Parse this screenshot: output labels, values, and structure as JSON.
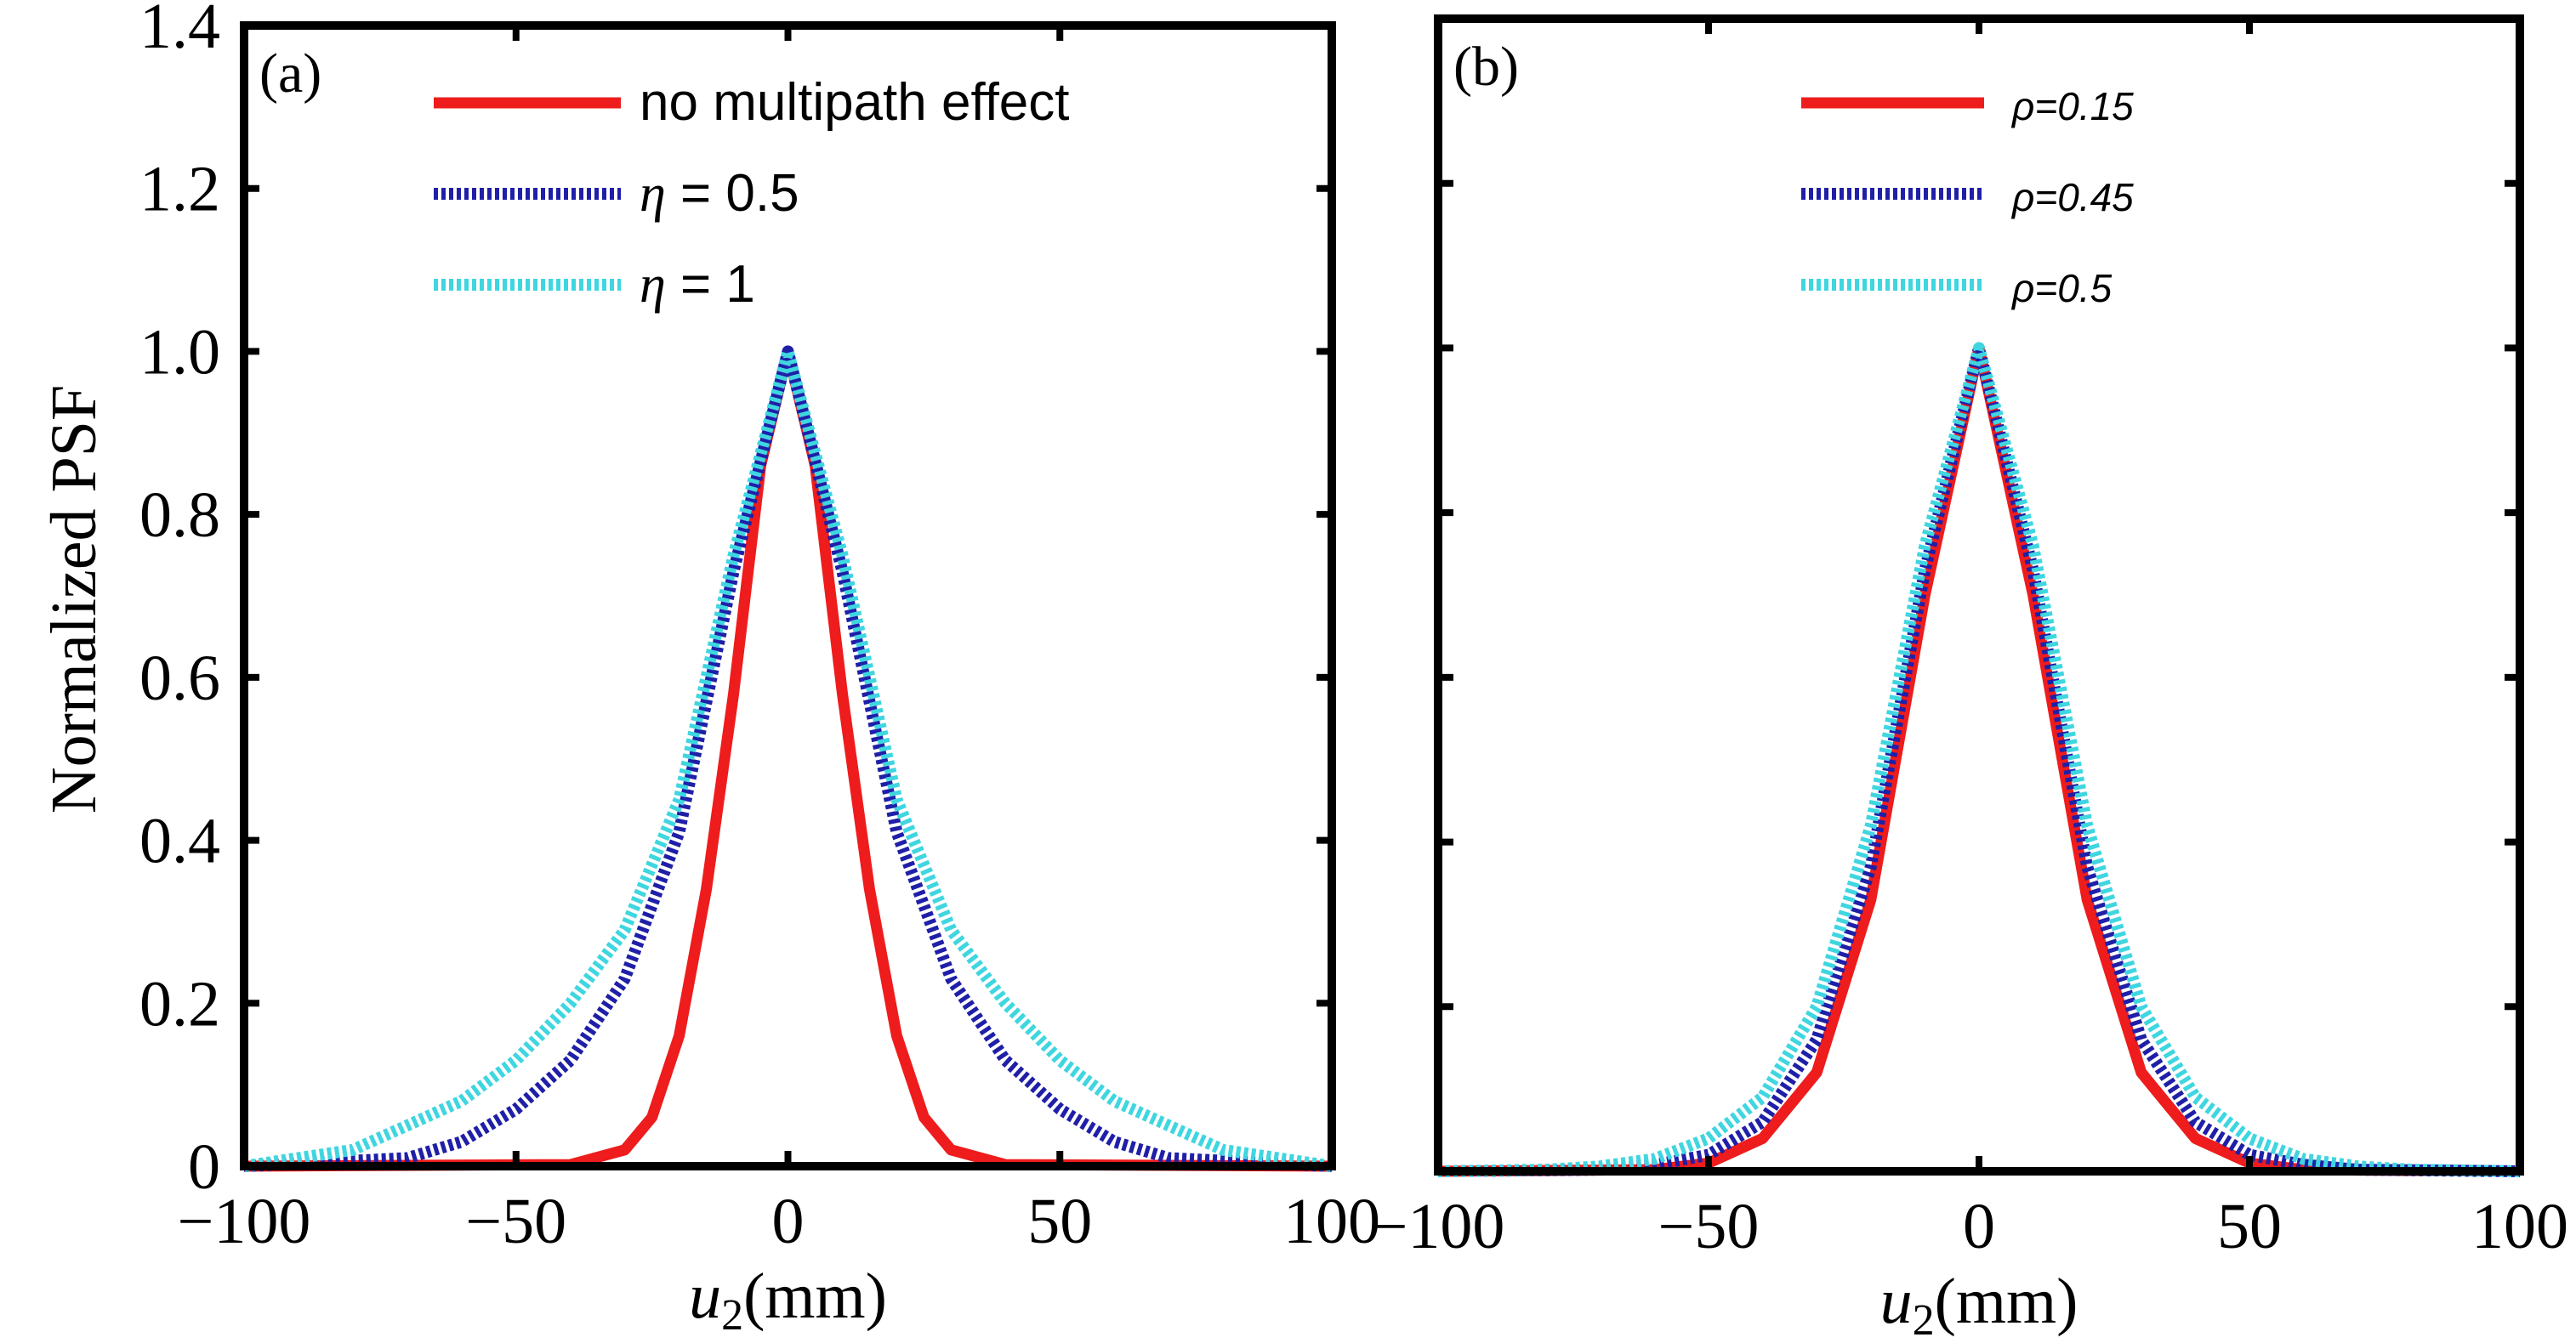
{
  "chart_data": [
    {
      "type": "line",
      "panel_label": "(a)",
      "xlabel_var": "u",
      "xlabel_sub": "2",
      "xlabel_unit": "(mm)",
      "ylabel": "Normalized PSF",
      "xlim": [
        -100,
        100
      ],
      "ylim": [
        0,
        1.4
      ],
      "xticks": [
        -100,
        -50,
        0,
        50,
        100
      ],
      "xtick_labels": [
        "−100",
        "−50",
        "0",
        "50",
        "100"
      ],
      "yticks": [
        0,
        0.2,
        0.4,
        0.6,
        0.8,
        1.0,
        1.2,
        1.4
      ],
      "ytick_labels": [
        "0",
        "0.2",
        "0.4",
        "0.6",
        "0.8",
        "1.0",
        "1.2",
        "1.4"
      ],
      "legend_position": "top",
      "series": [
        {
          "name": "no multipath effect",
          "legend_label": "no multipath effect",
          "color": "#ee1c1c",
          "style": "solid",
          "x": [
            -100,
            -40,
            -30,
            -25,
            -20,
            -15,
            -10,
            -5,
            0,
            5,
            10,
            15,
            20,
            25,
            30,
            40,
            100
          ],
          "y": [
            0,
            0.002,
            0.02,
            0.06,
            0.16,
            0.34,
            0.58,
            0.86,
            1.0,
            0.86,
            0.58,
            0.34,
            0.16,
            0.06,
            0.02,
            0.002,
            0
          ]
        },
        {
          "name": "eta = 0.5",
          "legend_symbol": "η",
          "legend_label": " = 0.5",
          "color": "#1f1fa8",
          "style": "dotted",
          "x": [
            -100,
            -70,
            -60,
            -50,
            -40,
            -30,
            -20,
            -10,
            0,
            10,
            20,
            30,
            40,
            50,
            60,
            70,
            100
          ],
          "y": [
            0,
            0.01,
            0.03,
            0.07,
            0.13,
            0.23,
            0.41,
            0.73,
            1.0,
            0.73,
            0.41,
            0.23,
            0.13,
            0.07,
            0.03,
            0.01,
            0
          ],
          "x_note": "approximate"
        },
        {
          "name": "eta = 1",
          "legend_symbol": "η",
          "legend_label": " = 1",
          "color": "#3fd6e0",
          "style": "dotted",
          "x": [
            -100,
            -90,
            -80,
            -70,
            -60,
            -50,
            -40,
            -30,
            -20,
            -10,
            0,
            10,
            20,
            30,
            40,
            50,
            60,
            70,
            80,
            90,
            100
          ],
          "y": [
            0,
            0.01,
            0.02,
            0.05,
            0.08,
            0.13,
            0.2,
            0.29,
            0.45,
            0.75,
            1.0,
            0.75,
            0.45,
            0.29,
            0.2,
            0.13,
            0.08,
            0.05,
            0.02,
            0.01,
            0
          ]
        }
      ]
    },
    {
      "type": "line",
      "panel_label": "(b)",
      "xlabel_var": "u",
      "xlabel_sub": "2",
      "xlabel_unit": "(mm)",
      "xlim": [
        -100,
        100
      ],
      "ylim": [
        0,
        1.4
      ],
      "xticks": [
        -100,
        -50,
        0,
        50,
        100
      ],
      "xtick_labels": [
        "−100",
        "−50",
        "0",
        "50",
        "100"
      ],
      "yticks": [
        0,
        0.2,
        0.4,
        0.6,
        0.8,
        1.0,
        1.2,
        1.4
      ],
      "legend_position": "top",
      "series": [
        {
          "name": "rho=0.15",
          "legend_label": "ρ=0.15",
          "color": "#ee1c1c",
          "style": "solid",
          "x": [
            -100,
            -60,
            -50,
            -40,
            -30,
            -20,
            -10,
            0,
            10,
            20,
            30,
            40,
            50,
            60,
            100
          ],
          "y": [
            0,
            0.002,
            0.01,
            0.04,
            0.12,
            0.33,
            0.7,
            1.0,
            0.7,
            0.33,
            0.12,
            0.04,
            0.01,
            0.002,
            0
          ]
        },
        {
          "name": "rho=0.45",
          "legend_label": "ρ=0.45",
          "color": "#1f1fa8",
          "style": "dotted",
          "x": [
            -100,
            -70,
            -60,
            -50,
            -40,
            -30,
            -20,
            -10,
            0,
            10,
            20,
            30,
            40,
            50,
            60,
            70,
            100
          ],
          "y": [
            0,
            0.002,
            0.008,
            0.02,
            0.06,
            0.16,
            0.37,
            0.73,
            1.0,
            0.73,
            0.37,
            0.16,
            0.06,
            0.02,
            0.008,
            0.002,
            0
          ]
        },
        {
          "name": "rho=0.5",
          "legend_label": "ρ=0.5",
          "color": "#3fd6e0",
          "style": "dotted",
          "x": [
            -100,
            -80,
            -70,
            -60,
            -50,
            -40,
            -30,
            -20,
            -10,
            0,
            10,
            20,
            30,
            40,
            50,
            60,
            70,
            80,
            100
          ],
          "y": [
            0,
            0.002,
            0.006,
            0.015,
            0.04,
            0.09,
            0.2,
            0.42,
            0.76,
            1.0,
            0.76,
            0.42,
            0.2,
            0.09,
            0.04,
            0.015,
            0.006,
            0.002,
            0
          ]
        }
      ]
    }
  ]
}
